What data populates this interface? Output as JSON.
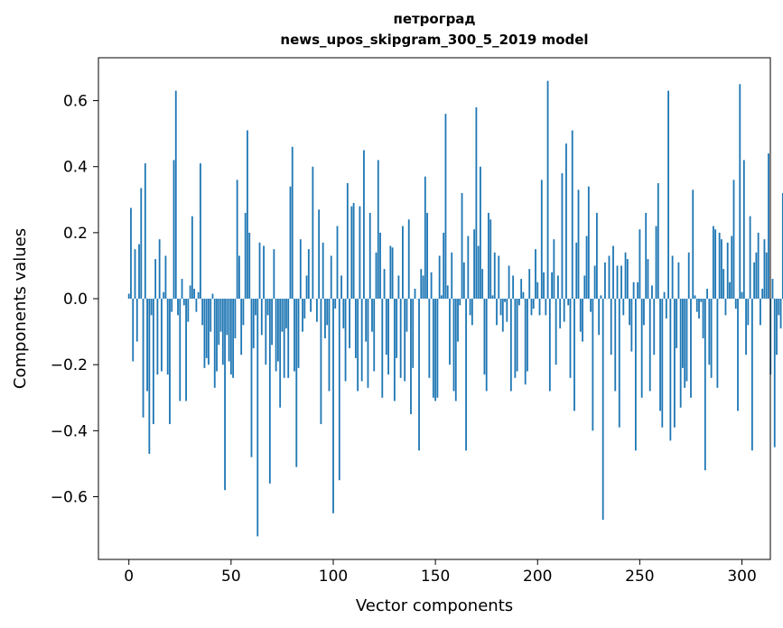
{
  "chart_data": {
    "type": "bar",
    "title_line1": "петроград",
    "title_line2": "news_upos_skipgram_300_5_2019 model",
    "xlabel": "Vector components",
    "ylabel": "Components values",
    "xlim": [
      -14.9,
      313.9
    ],
    "ylim": [
      -0.79,
      0.73
    ],
    "xticks": [
      0,
      50,
      100,
      150,
      200,
      250,
      300
    ],
    "yticks": [
      -0.6,
      -0.4,
      -0.2,
      0.0,
      0.2,
      0.4,
      0.6
    ],
    "ytick_labels": [
      "−0.6",
      "−0.4",
      "−0.2",
      "0.0",
      "0.2",
      "0.4",
      "0.6"
    ],
    "bar_color": "#1f77b4",
    "values": [
      0.015,
      0.275,
      -0.19,
      0.15,
      -0.13,
      0.165,
      0.335,
      -0.36,
      0.41,
      -0.28,
      -0.47,
      -0.05,
      -0.38,
      0.12,
      -0.23,
      0.18,
      -0.22,
      0.02,
      0.13,
      -0.23,
      -0.38,
      -0.04,
      0.42,
      0.63,
      -0.05,
      -0.31,
      0.06,
      -0.02,
      -0.31,
      -0.07,
      0.04,
      0.25,
      0.03,
      -0.04,
      0.02,
      0.41,
      -0.08,
      -0.21,
      -0.18,
      -0.2,
      -0.1,
      0.015,
      -0.27,
      -0.22,
      -0.14,
      -0.1,
      -0.2,
      -0.58,
      -0.11,
      -0.19,
      -0.23,
      -0.24,
      -0.12,
      0.36,
      0.13,
      -0.17,
      -0.08,
      0.26,
      0.51,
      0.2,
      -0.48,
      -0.15,
      -0.05,
      -0.72,
      0.17,
      -0.11,
      0.16,
      -0.2,
      -0.05,
      -0.56,
      -0.14,
      0.15,
      -0.22,
      -0.19,
      -0.33,
      -0.1,
      -0.24,
      -0.09,
      -0.24,
      0.34,
      0.46,
      -0.22,
      -0.51,
      -0.21,
      0.18,
      -0.1,
      -0.06,
      0.07,
      0.15,
      -0.04,
      0.4,
      0.0,
      -0.07,
      0.27,
      -0.38,
      0.17,
      -0.12,
      -0.08,
      -0.28,
      0.13,
      -0.65,
      -0.03,
      0.22,
      -0.55,
      0.07,
      -0.09,
      -0.25,
      0.35,
      -0.15,
      0.28,
      0.29,
      -0.18,
      -0.28,
      0.28,
      -0.25,
      0.45,
      -0.13,
      -0.27,
      0.26,
      -0.1,
      -0.22,
      0.14,
      0.42,
      0.2,
      -0.3,
      0.09,
      -0.17,
      -0.23,
      0.16,
      0.155,
      -0.31,
      -0.18,
      0.07,
      -0.24,
      0.22,
      -0.25,
      -0.1,
      0.24,
      -0.35,
      -0.21,
      0.03,
      0.0,
      -0.46,
      0.09,
      0.07,
      0.37,
      0.26,
      -0.24,
      0.08,
      -0.3,
      -0.31,
      -0.3,
      0.13,
      0.01,
      0.2,
      0.56,
      0.04,
      -0.2,
      0.14,
      -0.28,
      -0.31,
      -0.13,
      -0.02,
      0.32,
      0.11,
      -0.46,
      0.19,
      -0.05,
      -0.08,
      0.21,
      0.58,
      0.16,
      0.4,
      0.09,
      -0.23,
      -0.28,
      0.26,
      0.24,
      0.01,
      0.14,
      -0.08,
      0.13,
      -0.05,
      -0.1,
      -0.01,
      -0.07,
      0.1,
      -0.28,
      0.07,
      -0.24,
      -0.22,
      -0.02,
      0.06,
      0.02,
      -0.26,
      -0.22,
      0.09,
      -0.05,
      -0.03,
      0.15,
      0.05,
      -0.05,
      0.36,
      0.08,
      -0.05,
      0.66,
      -0.28,
      0.08,
      0.18,
      -0.2,
      0.07,
      -0.09,
      0.38,
      -0.07,
      0.47,
      -0.02,
      -0.24,
      0.51,
      -0.34,
      0.17,
      0.33,
      -0.1,
      -0.13,
      0.07,
      0.19,
      0.34,
      -0.04,
      -0.4,
      0.1,
      0.26,
      -0.11,
      0.01,
      -0.67,
      0.11,
      0.0,
      0.13,
      -0.17,
      0.16,
      -0.28,
      0.1,
      -0.39,
      0.1,
      -0.05,
      0.14,
      0.12,
      -0.08,
      -0.16,
      0.05,
      -0.46,
      0.05,
      0.21,
      -0.3,
      -0.08,
      0.26,
      0.12,
      -0.28,
      0.04,
      -0.17,
      0.22,
      0.35,
      -0.34,
      -0.39,
      0.02,
      -0.06,
      0.63,
      -0.43,
      0.13,
      -0.39,
      -0.15,
      0.11,
      -0.33,
      -0.21,
      -0.27,
      -0.25,
      0.14,
      -0.3,
      0.33,
      0.01,
      -0.04,
      -0.06,
      -0.01,
      -0.12,
      -0.52,
      0.03,
      -0.2,
      -0.24,
      0.22,
      0.21,
      -0.27,
      0.2,
      0.18,
      0.09,
      -0.05,
      0.17,
      0.05,
      0.19,
      0.36,
      -0.03,
      -0.34,
      0.65,
      0.02,
      0.42,
      -0.17,
      -0.08,
      0.25,
      -0.46,
      0.11,
      0.14,
      0.2,
      -0.08,
      0.03,
      0.18,
      0.14,
      0.44,
      -0.23,
      0.06,
      -0.45,
      -0.17,
      -0.05,
      -0.09,
      0.32,
      -0.16
    ]
  }
}
